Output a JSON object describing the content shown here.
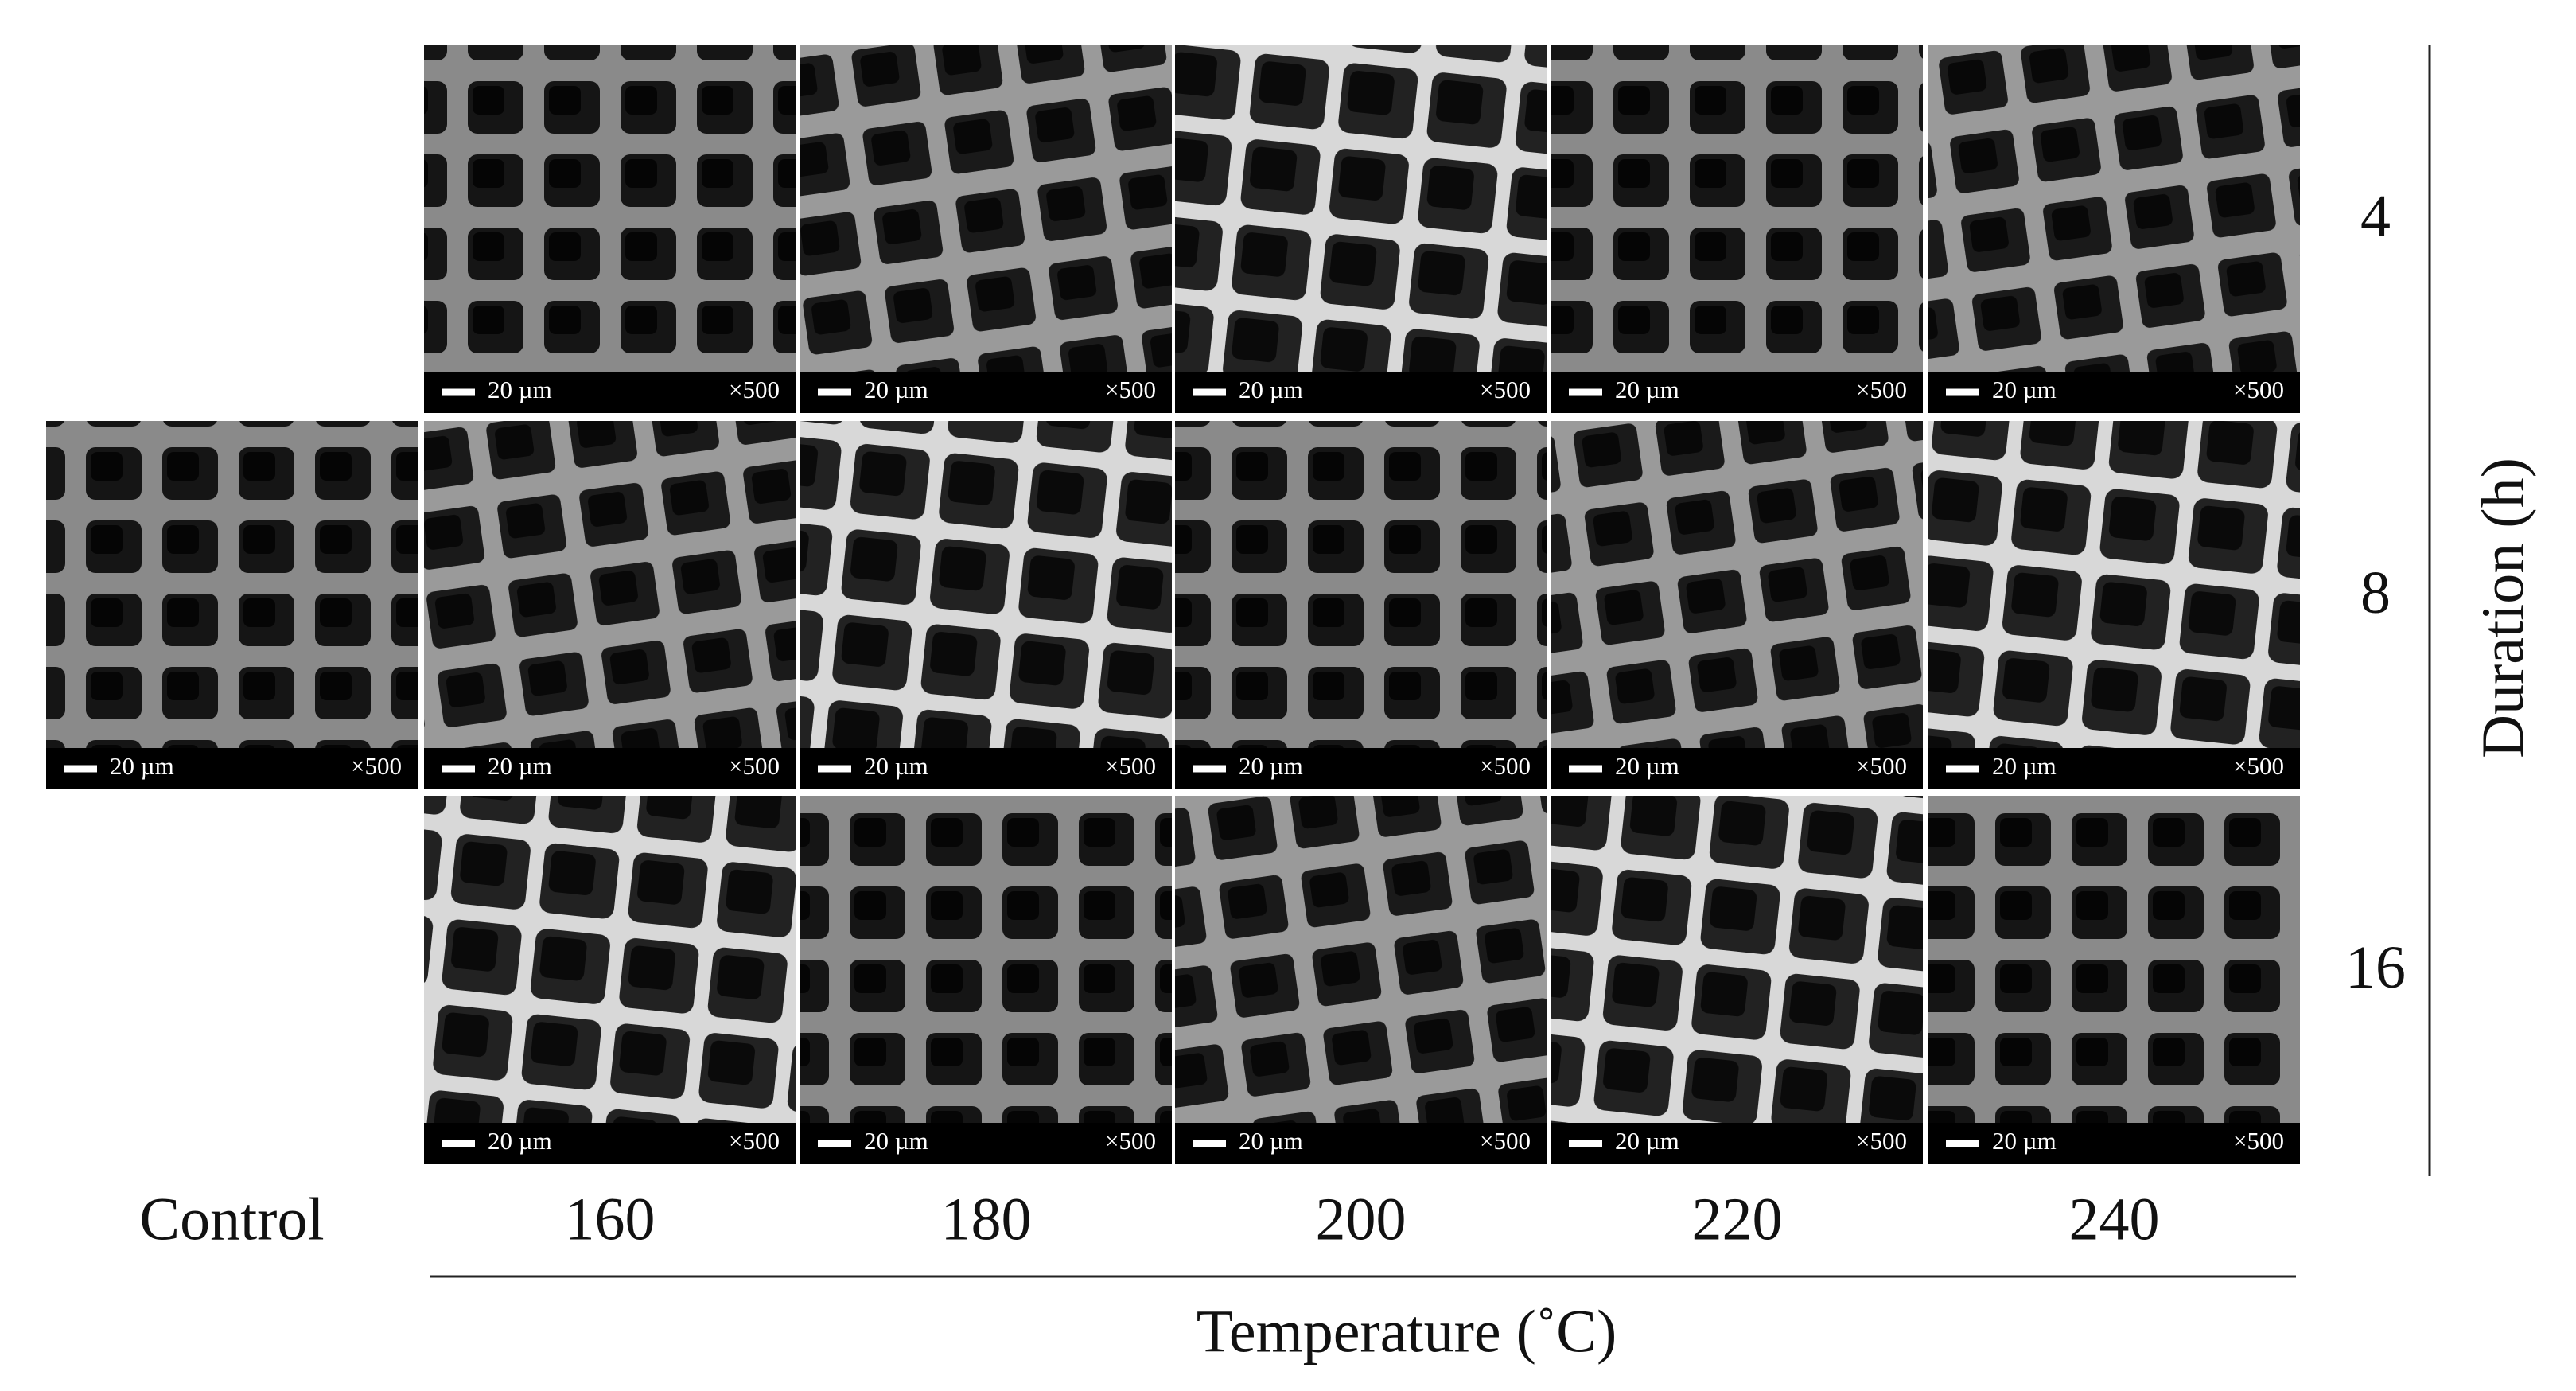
{
  "columns": [
    "Control",
    "160",
    "180",
    "200",
    "220",
    "240"
  ],
  "rows": [
    "4",
    "8",
    "16"
  ],
  "x_axis_title": "Temperature (˚C)",
  "y_axis_title": "Duration (h)",
  "control_panel": {
    "scale_bar": "20 µm",
    "magnification": "×500"
  },
  "panels": [
    [
      {
        "scale_bar": "20 µm",
        "magnification": "×500"
      },
      {
        "scale_bar": "20 µm",
        "magnification": "×500"
      },
      {
        "scale_bar": "20 µm",
        "magnification": "×500"
      },
      {
        "scale_bar": "20 µm",
        "magnification": "×500"
      },
      {
        "scale_bar": "20 µm",
        "magnification": "×500"
      }
    ],
    [
      {
        "scale_bar": "20 µm",
        "magnification": "×500"
      },
      {
        "scale_bar": "20 µm",
        "magnification": "×500"
      },
      {
        "scale_bar": "20 µm",
        "magnification": "×500"
      },
      {
        "scale_bar": "20 µm",
        "magnification": "×500"
      },
      {
        "scale_bar": "20 µm",
        "magnification": "×500"
      }
    ],
    [
      {
        "scale_bar": "20 µm",
        "magnification": "×500"
      },
      {
        "scale_bar": "20 µm",
        "magnification": "×500"
      },
      {
        "scale_bar": "20 µm",
        "magnification": "×500"
      },
      {
        "scale_bar": "20 µm",
        "magnification": "×500"
      },
      {
        "scale_bar": "20 µm",
        "magnification": "×500"
      }
    ]
  ]
}
